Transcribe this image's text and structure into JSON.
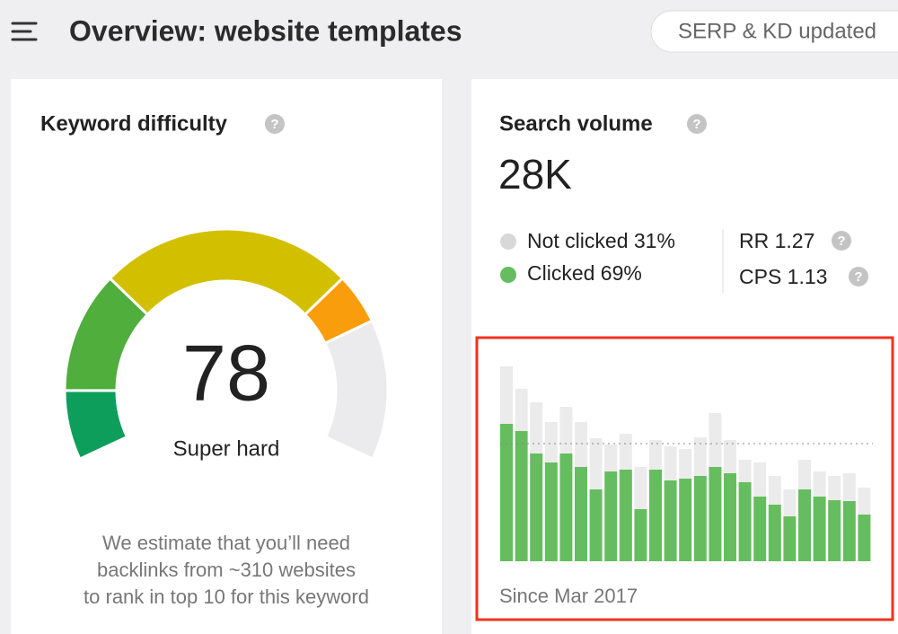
{
  "header": {
    "title": "Overview: website templates",
    "status_pill": "SERP & KD updated"
  },
  "help_icon": "?",
  "keyword_difficulty": {
    "title": "Keyword difficulty",
    "score": 78,
    "rating": "Super hard",
    "description": [
      "We estimate that you’ll need",
      "backlinks from ~310 websites",
      "to rank in top 10 for this keyword"
    ]
  },
  "search_volume": {
    "title": "Search volume",
    "value": "28K",
    "not_clicked": "Not clicked 31%",
    "clicked": "Clicked 69%",
    "rr": "RR 1.27",
    "cps": "CPS 1.13"
  },
  "chart_data": {
    "type": "bar",
    "stacked": true,
    "categories": [
      null,
      null,
      null,
      null,
      null,
      null,
      null,
      null,
      null,
      null,
      null,
      null,
      null,
      null,
      null,
      null,
      null,
      null,
      null,
      null,
      null,
      null,
      null,
      null,
      null
    ],
    "series": [
      {
        "name": "Clicked",
        "color": "#66bd5f",
        "values": [
          153,
          145,
          120,
          110,
          120,
          105,
          80,
          100,
          102,
          58,
          102,
          90,
          92,
          95,
          105,
          98,
          88,
          72,
          63,
          50,
          80,
          72,
          68,
          67,
          52
        ]
      },
      {
        "name": "Not clicked",
        "color": "#ebebeb",
        "values": [
          64,
          47,
          57,
          45,
          52,
          50,
          57,
          30,
          40,
          47,
          33,
          38,
          33,
          43,
          60,
          37,
          25,
          38,
          32,
          30,
          33,
          28,
          27,
          31,
          30
        ]
      }
    ],
    "reference_line": 131,
    "ylim": [
      0,
      220
    ],
    "caption": "Since Mar 2017"
  }
}
